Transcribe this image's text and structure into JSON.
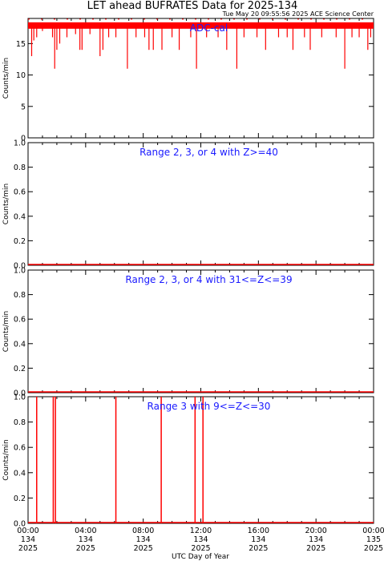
{
  "title": "LET ahead BUFRATES Data for 2025-134",
  "subtitle": "Tue May 20 09:55:56 2025 ACE Science Center",
  "xlabel": "UTC Day of Year",
  "x_ticks": [
    {
      "time": "00:00",
      "doy": "134",
      "year": "2025",
      "hour": 0
    },
    {
      "time": "04:00",
      "doy": "134",
      "year": "2025",
      "hour": 4
    },
    {
      "time": "08:00",
      "doy": "134",
      "year": "2025",
      "hour": 8
    },
    {
      "time": "12:00",
      "doy": "134",
      "year": "2025",
      "hour": 12
    },
    {
      "time": "16:00",
      "doy": "134",
      "year": "2025",
      "hour": 16
    },
    {
      "time": "20:00",
      "doy": "134",
      "year": "2025",
      "hour": 20
    },
    {
      "time": "00:00",
      "doy": "135",
      "year": "2025",
      "hour": 24
    }
  ],
  "colors": {
    "data": "#ff0000",
    "label": "#1a1aff",
    "axis": "#000000"
  },
  "chart_data": [
    {
      "type": "line",
      "label": "ADC-cal",
      "ylabel": "Counts/min",
      "ylim": [
        0,
        19
      ],
      "yticks": [
        0,
        5,
        10,
        15
      ],
      "xlim_hours": [
        0,
        24
      ],
      "baseline": 18,
      "dips": [
        {
          "hour": 0.25,
          "value": 13
        },
        {
          "hour": 0.4,
          "value": 15.5
        },
        {
          "hour": 0.6,
          "value": 16
        },
        {
          "hour": 1.0,
          "value": 17
        },
        {
          "hour": 1.7,
          "value": 16
        },
        {
          "hour": 1.85,
          "value": 11
        },
        {
          "hour": 2.0,
          "value": 14
        },
        {
          "hour": 2.2,
          "value": 15
        },
        {
          "hour": 2.7,
          "value": 16
        },
        {
          "hour": 3.3,
          "value": 16.5
        },
        {
          "hour": 3.6,
          "value": 14
        },
        {
          "hour": 3.75,
          "value": 14
        },
        {
          "hour": 4.3,
          "value": 16.5
        },
        {
          "hour": 5.0,
          "value": 13
        },
        {
          "hour": 5.2,
          "value": 14
        },
        {
          "hour": 5.6,
          "value": 16
        },
        {
          "hour": 6.1,
          "value": 16
        },
        {
          "hour": 6.9,
          "value": 11
        },
        {
          "hour": 7.5,
          "value": 16
        },
        {
          "hour": 8.1,
          "value": 16
        },
        {
          "hour": 8.4,
          "value": 14
        },
        {
          "hour": 8.7,
          "value": 14
        },
        {
          "hour": 9.3,
          "value": 14
        },
        {
          "hour": 10.0,
          "value": 16
        },
        {
          "hour": 10.5,
          "value": 14
        },
        {
          "hour": 11.3,
          "value": 16
        },
        {
          "hour": 11.7,
          "value": 11
        },
        {
          "hour": 12.4,
          "value": 16
        },
        {
          "hour": 13.2,
          "value": 16
        },
        {
          "hour": 13.8,
          "value": 14
        },
        {
          "hour": 14.5,
          "value": 11
        },
        {
          "hour": 15.0,
          "value": 16
        },
        {
          "hour": 15.9,
          "value": 16
        },
        {
          "hour": 16.5,
          "value": 14
        },
        {
          "hour": 17.4,
          "value": 16
        },
        {
          "hour": 18.0,
          "value": 16
        },
        {
          "hour": 18.4,
          "value": 14
        },
        {
          "hour": 19.2,
          "value": 16
        },
        {
          "hour": 19.6,
          "value": 14
        },
        {
          "hour": 20.4,
          "value": 16
        },
        {
          "hour": 21.4,
          "value": 16
        },
        {
          "hour": 22.0,
          "value": 11
        },
        {
          "hour": 22.5,
          "value": 16
        },
        {
          "hour": 23.0,
          "value": 16
        },
        {
          "hour": 23.6,
          "value": 14
        },
        {
          "hour": 23.8,
          "value": 16
        }
      ]
    },
    {
      "type": "line",
      "label": "Range 2, 3, or 4 with Z>=40",
      "ylabel": "Counts/min",
      "ylim": [
        0,
        1
      ],
      "yticks": [
        0.0,
        0.2,
        0.4,
        0.6,
        0.8,
        1.0
      ],
      "xlim_hours": [
        0,
        24
      ],
      "baseline": 0,
      "spikes": []
    },
    {
      "type": "line",
      "label": "Range 2, 3, or 4 with 31<=Z<=39",
      "ylabel": "Counts/min",
      "ylim": [
        0,
        1
      ],
      "yticks": [
        0.0,
        0.2,
        0.4,
        0.6,
        0.8,
        1.0
      ],
      "xlim_hours": [
        0,
        24
      ],
      "baseline": 0,
      "spikes": []
    },
    {
      "type": "line",
      "label": "Range 3 with 9<=Z<=30",
      "ylabel": "Counts/min",
      "ylim": [
        0,
        1
      ],
      "yticks": [
        0.0,
        0.2,
        0.4,
        0.6,
        0.8,
        1.0
      ],
      "xlim_hours": [
        0,
        24
      ],
      "baseline": 0,
      "spikes": [
        {
          "hour": 0.6,
          "value": 1
        },
        {
          "hour": 1.75,
          "value": 1
        },
        {
          "hour": 1.9,
          "value": 1
        },
        {
          "hour": 6.1,
          "value": 1
        },
        {
          "hour": 9.25,
          "value": 1
        },
        {
          "hour": 11.6,
          "value": 1
        },
        {
          "hour": 12.15,
          "value": 1
        }
      ]
    }
  ]
}
